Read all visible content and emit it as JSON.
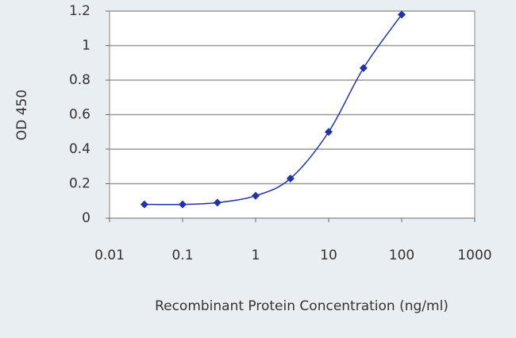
{
  "chart_data": {
    "type": "line",
    "xlabel": "Recombinant Protein Concentration (ng/ml)",
    "ylabel": "OD 450",
    "x": [
      0.03,
      0.1,
      0.3,
      1,
      3,
      10,
      30,
      100
    ],
    "values": [
      0.08,
      0.08,
      0.09,
      0.13,
      0.23,
      0.5,
      0.87,
      1.18
    ],
    "color": "#2232a8",
    "xscale": "log",
    "xlim": [
      0.01,
      1000
    ],
    "xticks": [
      0.01,
      0.1,
      1,
      10,
      100,
      1000
    ],
    "ylim": [
      0,
      1.2
    ],
    "yticks": [
      0,
      0.2,
      0.4,
      0.6,
      0.8,
      1,
      1.2
    ],
    "grid": true
  }
}
